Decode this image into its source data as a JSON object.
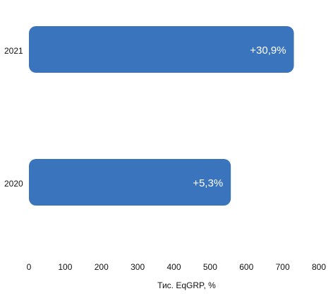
{
  "chart_data": {
    "type": "bar",
    "orientation": "horizontal",
    "categories": [
      "2021",
      "2020"
    ],
    "values": [
      731,
      557
    ],
    "data_labels": [
      "+30,9%",
      "+5,3%"
    ],
    "xlabel": "Тис. EqGRP, %",
    "ylabel": "",
    "xlim": [
      0,
      800
    ],
    "ticks": [
      0,
      100,
      200,
      300,
      400,
      500,
      600,
      700,
      800
    ],
    "grid": false,
    "legend": "none",
    "colors": {
      "bar": "#3a74bd",
      "text": "#111111",
      "label": "#ffffff"
    }
  }
}
